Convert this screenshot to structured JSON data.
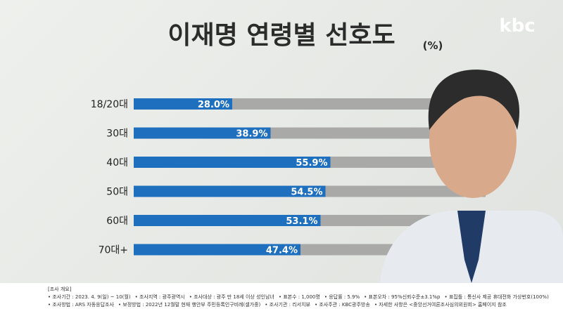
{
  "chart_data": {
    "type": "bar",
    "orientation": "horizontal",
    "title": "이재명 연령별 선호도",
    "unit": "(%)",
    "logo": "kbc",
    "categories": [
      "18/20대",
      "30대",
      "40대",
      "50대",
      "60대",
      "70대+"
    ],
    "values": [
      28.0,
      38.9,
      55.9,
      54.5,
      53.1,
      47.4
    ],
    "value_labels": [
      "28.0%",
      "38.9%",
      "55.9%",
      "54.5%",
      "53.1%",
      "47.4%"
    ],
    "color": "#1f6fbf",
    "track_color": "#a9aaa8",
    "xlim": [
      0,
      100
    ]
  },
  "footer": {
    "heading": "[조사 개요]",
    "lines": [
      [
        "조사기간 : 2023. 4. 9(일) ~ 10(월)",
        "조사지역 : 광주광역시",
        "조사대상 : 광주 만 18세 이상 성인남녀",
        "표본수 : 1,000명",
        "응답률 : 5.9%",
        "표본오차 : 95%신뢰수준±3.1%p",
        "표집틀 : 통신사 제공 휴대전화 가상번호(100%)"
      ],
      [
        "조사방법 : ARS 자동응답조사",
        "보정방법 : 2022년 12월말 현재 행안부 주민등록인구비례(셀가중)",
        "조사기관 : 리서치뷰",
        "조사주관 : KBC광주방송",
        "자세한 사항은 <중앙선거여론조사심의위원회> 홈페이지 참조"
      ]
    ]
  }
}
